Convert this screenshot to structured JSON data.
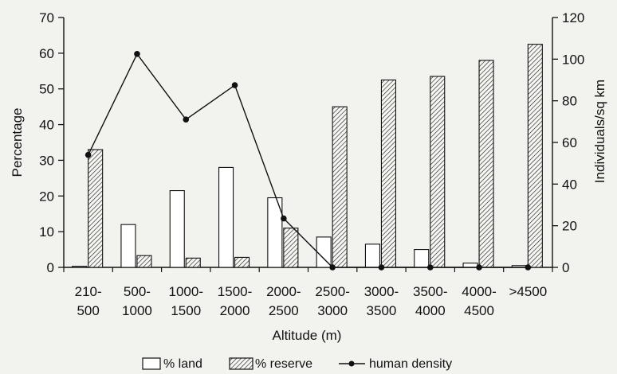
{
  "chart_data": {
    "type": "bar",
    "xlabel": "Altitude (m)",
    "ylabel": "Percentage",
    "y2label": "Individuals/sq km",
    "ylim": [
      0,
      70
    ],
    "y2lim": [
      0,
      120
    ],
    "yticks": [
      0,
      10,
      20,
      30,
      40,
      50,
      60,
      70
    ],
    "y2ticks": [
      0,
      20,
      40,
      60,
      80,
      100,
      120
    ],
    "categories": [
      [
        "210-",
        "500"
      ],
      [
        "500-",
        "1000"
      ],
      [
        "1000-",
        "1500"
      ],
      [
        "1500-",
        "2000"
      ],
      [
        "2000-",
        "2500"
      ],
      [
        "2500-",
        "3000"
      ],
      [
        "3000-",
        "3500"
      ],
      [
        "3500-",
        "4000"
      ],
      [
        "4000-",
        "4500"
      ],
      [
        ">4500",
        ""
      ]
    ],
    "series": [
      {
        "name": "% land",
        "type": "bar",
        "axis": "left",
        "pattern": "open",
        "values": [
          0.3,
          12,
          21.5,
          28,
          19.5,
          8.5,
          6.5,
          5,
          1.2,
          0.5
        ]
      },
      {
        "name": "% reserve",
        "type": "bar",
        "axis": "left",
        "pattern": "hatched",
        "values": [
          33,
          3.3,
          2.6,
          2.8,
          11,
          45,
          52.5,
          53.5,
          58,
          62.5
        ]
      },
      {
        "name": "human density",
        "type": "line",
        "axis": "right",
        "marker": "dot",
        "values": [
          54,
          102.5,
          71,
          87.5,
          23.5,
          0,
          0,
          0,
          0,
          0
        ]
      }
    ],
    "legend": {
      "position": "bottom",
      "entries": [
        "% land",
        "% reserve",
        "human density"
      ]
    },
    "colors": {
      "ink": "#111111",
      "background": "#f2f2ef",
      "bar_fill": "#ffffff"
    }
  }
}
